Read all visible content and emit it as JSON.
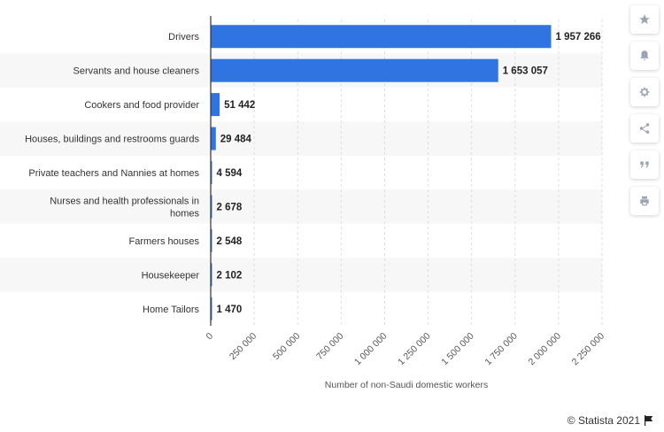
{
  "chart_data": {
    "type": "bar",
    "orientation": "horizontal",
    "categories": [
      "Drivers",
      "Servants and house cleaners",
      "Cookers and food provider",
      "Houses, buildings and restrooms guards",
      "Private teachers and Nannies at homes",
      "Nurses and health professionals in homes",
      "Farmers houses",
      "Housekeeper",
      "Home Tailors"
    ],
    "values": [
      1957266,
      1653057,
      51442,
      29484,
      4594,
      2678,
      2548,
      2102,
      1470
    ],
    "value_labels": [
      "1 957 266",
      "1 653 057",
      "51 442",
      "29 484",
      "4 594",
      "2 678",
      "2 548",
      "2 102",
      "1 470"
    ],
    "xlabel": "Number of non-Saudi domestic workers",
    "xlim": [
      0,
      2250000
    ],
    "xticks": [
      0,
      250000,
      500000,
      750000,
      1000000,
      1250000,
      1500000,
      1750000,
      2000000,
      2250000
    ],
    "xtick_labels": [
      "0",
      "250 000",
      "500 000",
      "750 000",
      "1 000 000",
      "1 250 000",
      "1 500 000",
      "1 750 000",
      "2 000 000",
      "2 250 000"
    ],
    "bar_color": "#2f74e0",
    "band_color": "#f7f7f7",
    "grid": true
  },
  "sidebar": {
    "icons": [
      "star-icon",
      "bell-icon",
      "gear-icon",
      "share-icon",
      "quote-icon",
      "print-icon"
    ]
  },
  "footer": {
    "copyright": "© Statista 2021"
  }
}
